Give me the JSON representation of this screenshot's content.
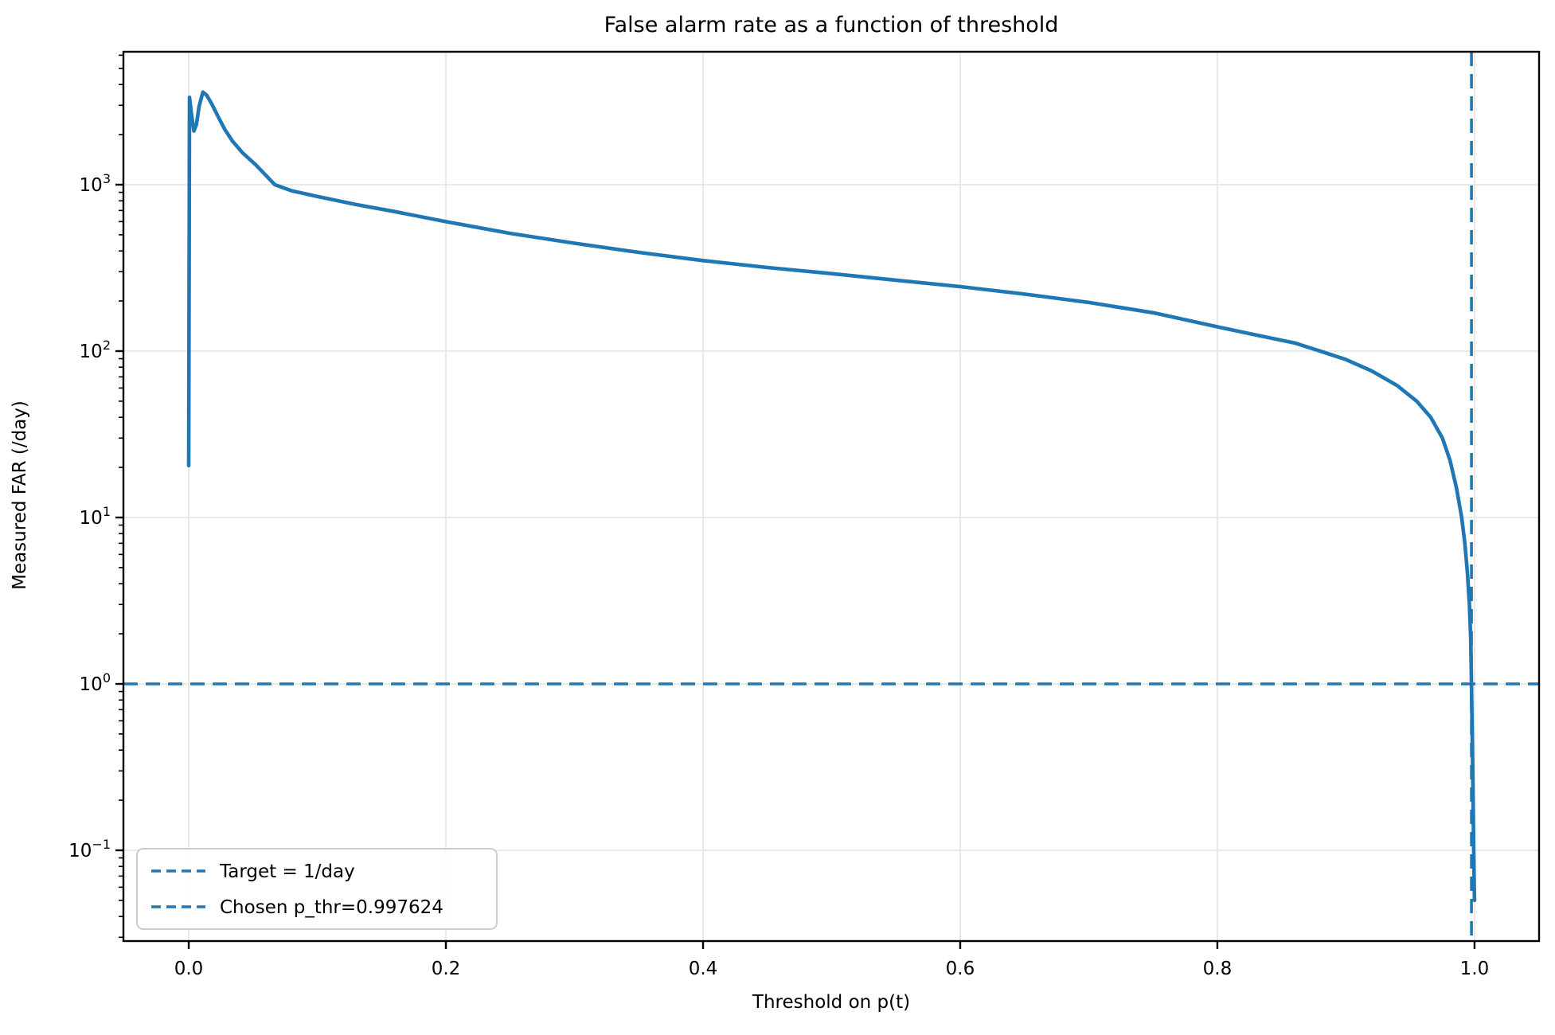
{
  "chart_data": {
    "type": "line",
    "title": "False alarm rate as a function of threshold",
    "xlabel": "Threshold on p(t)",
    "ylabel": "Measured FAR (/day)",
    "x_scale": "linear",
    "y_scale": "log",
    "xlim": [
      -0.0508,
      1.0502
    ],
    "ylim_log10": [
      -1.5455,
      3.799
    ],
    "x_ticks": [
      0.0,
      0.2,
      0.4,
      0.6,
      0.8,
      1.0
    ],
    "x_tick_labels": [
      "0.0",
      "0.2",
      "0.4",
      "0.6",
      "0.8",
      "1.0"
    ],
    "y_tick_exponents": [
      3,
      2,
      1,
      0,
      -1
    ],
    "y_tick_base": "10",
    "grid": true,
    "legend_position": "lower left",
    "series": [
      {
        "name": "measured-far-curve",
        "color": "#1f77b4",
        "style": "solid",
        "points": [
          [
            0.0,
            20.5
          ],
          [
            0.0006,
            3350
          ],
          [
            0.002,
            2700
          ],
          [
            0.004,
            2100
          ],
          [
            0.006,
            2300
          ],
          [
            0.008,
            2950
          ],
          [
            0.011,
            3600
          ],
          [
            0.014,
            3450
          ],
          [
            0.018,
            3050
          ],
          [
            0.023,
            2550
          ],
          [
            0.028,
            2150
          ],
          [
            0.034,
            1830
          ],
          [
            0.042,
            1550
          ],
          [
            0.052,
            1320
          ],
          [
            0.067,
            1000
          ],
          [
            0.08,
            920
          ],
          [
            0.1,
            850
          ],
          [
            0.13,
            760
          ],
          [
            0.16,
            690
          ],
          [
            0.2,
            600
          ],
          [
            0.25,
            510
          ],
          [
            0.3,
            445
          ],
          [
            0.35,
            392
          ],
          [
            0.4,
            350
          ],
          [
            0.45,
            318
          ],
          [
            0.5,
            292
          ],
          [
            0.55,
            267
          ],
          [
            0.6,
            244
          ],
          [
            0.65,
            220
          ],
          [
            0.7,
            196
          ],
          [
            0.75,
            170
          ],
          [
            0.8,
            140
          ],
          [
            0.83,
            125
          ],
          [
            0.86,
            112
          ],
          [
            0.88,
            100
          ],
          [
            0.9,
            89
          ],
          [
            0.92,
            76
          ],
          [
            0.94,
            62
          ],
          [
            0.955,
            50
          ],
          [
            0.966,
            40
          ],
          [
            0.975,
            30
          ],
          [
            0.981,
            22
          ],
          [
            0.986,
            15
          ],
          [
            0.99,
            10
          ],
          [
            0.9925,
            7.0
          ],
          [
            0.9945,
            4.6
          ],
          [
            0.996,
            3.0
          ],
          [
            0.997,
            1.9
          ],
          [
            0.9976,
            1.0
          ],
          [
            0.9981,
            0.55
          ],
          [
            0.9986,
            0.3
          ],
          [
            0.999,
            0.17
          ],
          [
            0.9994,
            0.095
          ],
          [
            0.9998,
            0.058
          ],
          [
            1.0,
            0.05
          ]
        ]
      }
    ],
    "target_line": {
      "label": "Target = 1/day",
      "value": 1.0,
      "color": "#1f77b4",
      "style": "dashed",
      "orientation": "horizontal"
    },
    "threshold_line": {
      "label": "Chosen p_thr=0.997624",
      "value": 0.997624,
      "color": "#1f77b4",
      "style": "dashed",
      "orientation": "vertical"
    },
    "legend": {
      "entries": [
        {
          "label": "Target = 1/day",
          "color": "#1f77b4",
          "style": "dashed"
        },
        {
          "label": "Chosen p_thr=0.997624",
          "color": "#1f77b4",
          "style": "dashed"
        }
      ]
    },
    "colors": {
      "line": "#1f77b4",
      "grid": "#e7e7e7",
      "spine": "#000000",
      "background": "#ffffff",
      "legend_border": "#cccccc"
    }
  }
}
